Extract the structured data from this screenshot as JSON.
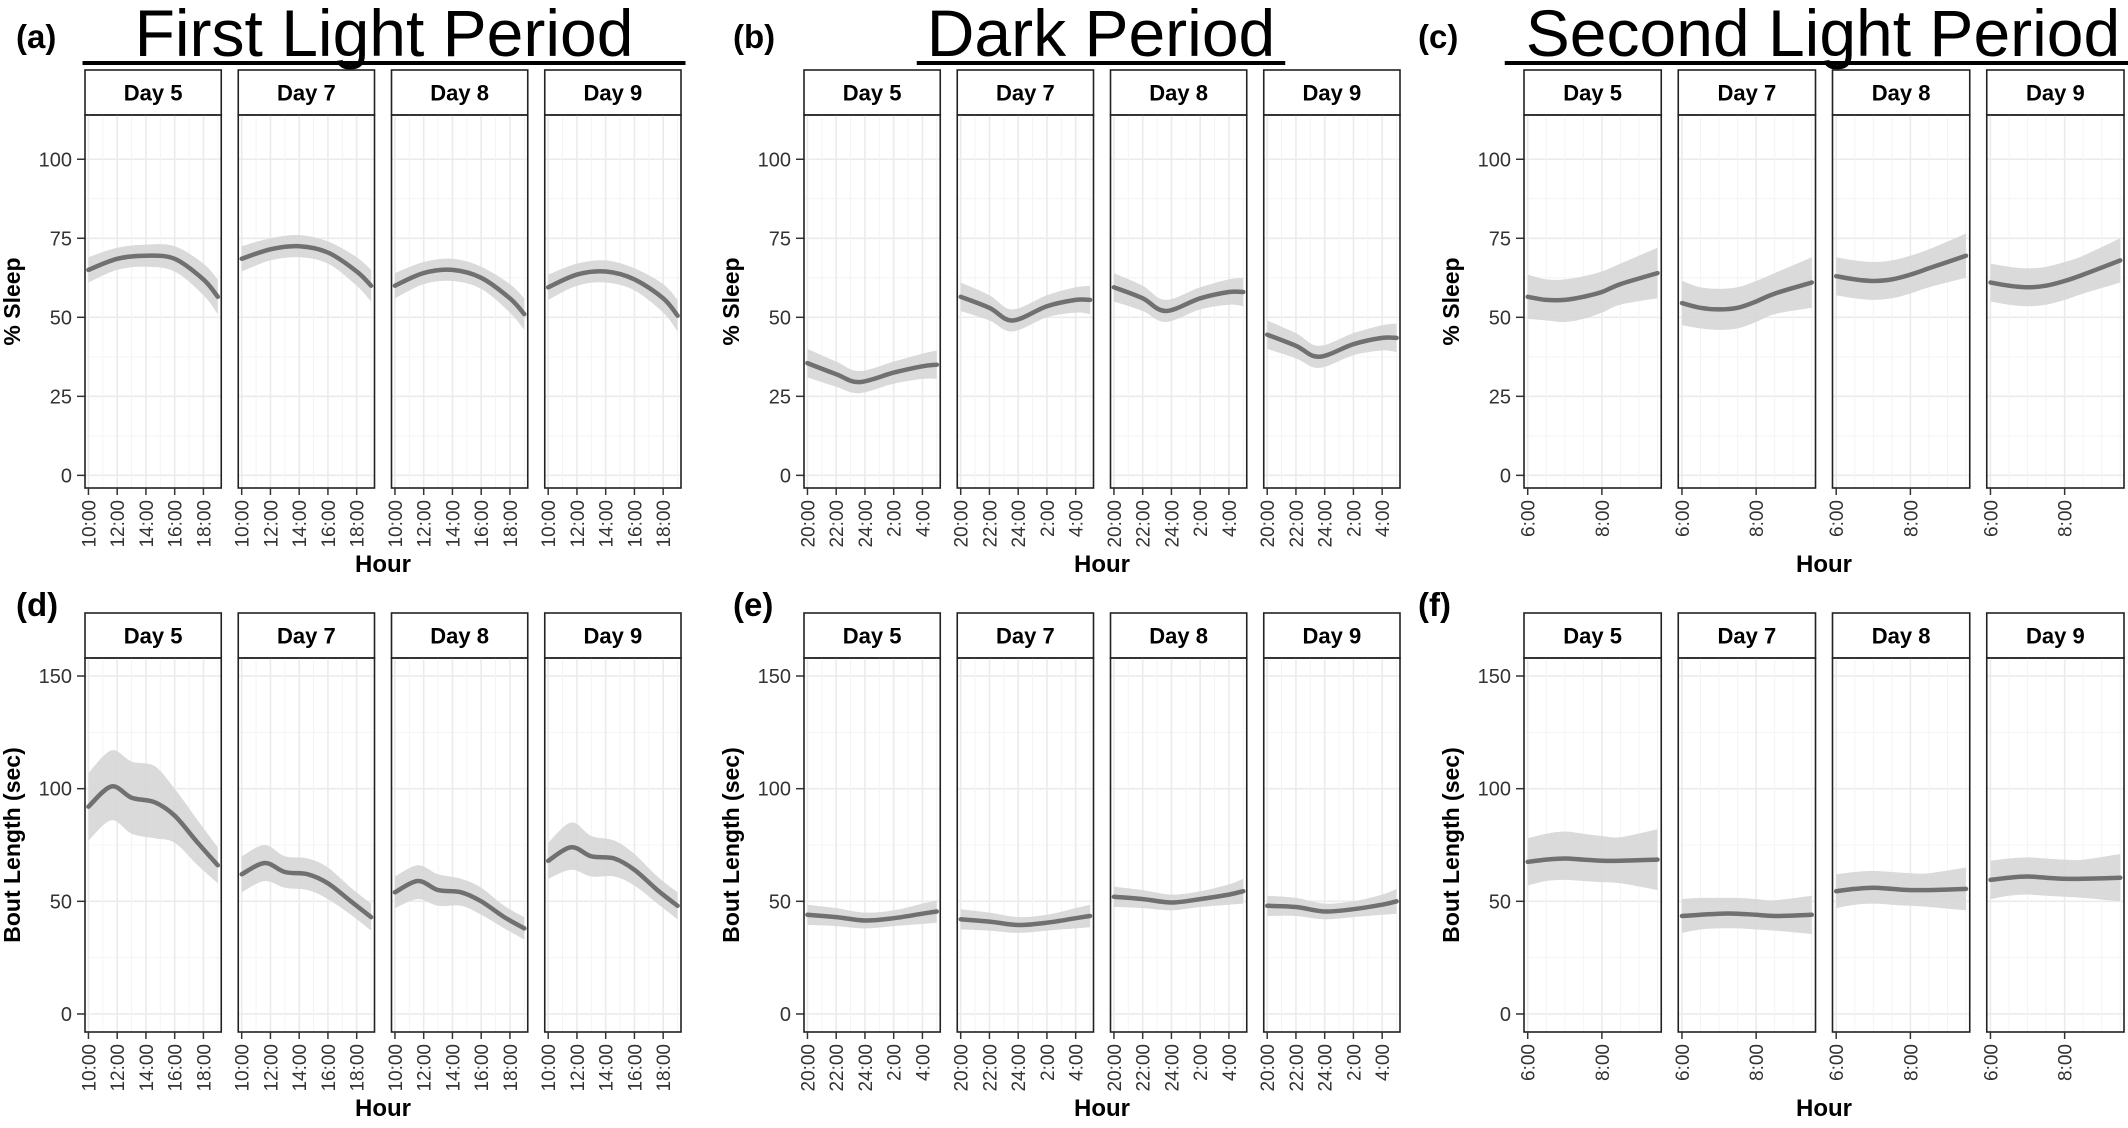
{
  "colors": {
    "line": "#707070",
    "ribbon": "#d6d6d6",
    "grid": "#ebebeb",
    "frame": "#222222",
    "strip_fill": "#ffffff",
    "text": "#000000"
  },
  "days": [
    "Day 5",
    "Day 7",
    "Day 8",
    "Day 9"
  ],
  "chart_data": [
    {
      "panel_label": "(a)",
      "title": "First Light Period",
      "type": "line",
      "xlabel": "Hour",
      "ylabel": "% Sleep",
      "x_ticks": [
        "10:00",
        "12:00",
        "14:00",
        "16:00",
        "18:00"
      ],
      "y_ticks": [
        0,
        25,
        50,
        75,
        100
      ],
      "ylim": [
        -4,
        114
      ],
      "series": [
        {
          "panel": "Day 5",
          "x": [
            0,
            1,
            2,
            3,
            4,
            4.5
          ],
          "values": [
            65,
            68.5,
            69.5,
            68.5,
            62,
            56.5
          ],
          "lower": [
            61,
            65,
            66,
            64.5,
            57,
            51
          ],
          "upper": [
            69,
            72,
            73,
            72.5,
            67,
            62
          ]
        },
        {
          "panel": "Day 7",
          "x": [
            0,
            1,
            2,
            3,
            4,
            4.5
          ],
          "values": [
            68.5,
            71.5,
            72.5,
            70.5,
            64.5,
            60
          ],
          "lower": [
            64.5,
            68,
            69,
            67,
            60,
            55
          ],
          "upper": [
            72.5,
            75,
            76,
            74,
            69,
            65
          ]
        },
        {
          "panel": "Day 8",
          "x": [
            0,
            1,
            2,
            3,
            4,
            4.5
          ],
          "values": [
            60,
            64,
            65,
            62.5,
            56,
            51
          ],
          "lower": [
            56,
            60.5,
            61.5,
            59,
            51.5,
            46
          ],
          "upper": [
            64,
            67.5,
            68.5,
            66,
            60.5,
            56
          ]
        },
        {
          "panel": "Day 9",
          "x": [
            0,
            1,
            2,
            3,
            4,
            4.5
          ],
          "values": [
            59.5,
            63.5,
            64.5,
            62,
            56,
            50.5
          ],
          "lower": [
            55.5,
            60,
            61,
            58.5,
            51.5,
            45.5
          ],
          "upper": [
            63.5,
            67,
            68,
            65.5,
            60.5,
            55.5
          ]
        }
      ]
    },
    {
      "panel_label": "(b)",
      "title": "Dark Period",
      "type": "line",
      "xlabel": "Hour",
      "ylabel": "% Sleep",
      "x_ticks": [
        "20:00",
        "22:00",
        "24:00",
        "2:00",
        "4:00"
      ],
      "y_ticks": [
        0,
        25,
        50,
        75,
        100
      ],
      "ylim": [
        -4,
        114
      ],
      "series": [
        {
          "panel": "Day 5",
          "x": [
            0,
            1,
            1.8,
            3,
            4,
            4.5
          ],
          "values": [
            35.5,
            32,
            29.5,
            32.5,
            34.5,
            35
          ],
          "lower": [
            31,
            28,
            26,
            29,
            30.5,
            30.5
          ],
          "upper": [
            40,
            36,
            33,
            36,
            38.5,
            39.5
          ]
        },
        {
          "panel": "Day 7",
          "x": [
            0,
            1,
            1.8,
            3,
            4,
            4.5
          ],
          "values": [
            56.5,
            53,
            49,
            53.5,
            55.5,
            55.5
          ],
          "lower": [
            52,
            49,
            45.5,
            50,
            51.5,
            51
          ],
          "upper": [
            61,
            57,
            52.5,
            57,
            59.5,
            60
          ]
        },
        {
          "panel": "Day 8",
          "x": [
            0,
            1,
            1.8,
            3,
            4,
            4.5
          ],
          "values": [
            59.5,
            56,
            52,
            56,
            58,
            58
          ],
          "lower": [
            55,
            52,
            48.5,
            52.5,
            54,
            53.5
          ],
          "upper": [
            64,
            60,
            55.5,
            59.5,
            62,
            62.5
          ]
        },
        {
          "panel": "Day 9",
          "x": [
            0,
            1,
            1.8,
            3,
            4,
            4.5
          ],
          "values": [
            44.5,
            41,
            37.5,
            41.5,
            43.5,
            43.5
          ],
          "lower": [
            40,
            37,
            34,
            38,
            39.5,
            39
          ],
          "upper": [
            49,
            45,
            41,
            45,
            47.5,
            48
          ]
        }
      ]
    },
    {
      "panel_label": "(c)",
      "title": "Second Light Period",
      "type": "line",
      "xlabel": "Hour",
      "ylabel": "% Sleep",
      "x_ticks": [
        "6:00",
        "8:00"
      ],
      "y_ticks": [
        0,
        25,
        50,
        75,
        100
      ],
      "ylim": [
        -4,
        114
      ],
      "series": [
        {
          "panel": "Day 5",
          "x": [
            0,
            0.5,
            1,
            1.5,
            2,
            2.5,
            3.5
          ],
          "values": [
            56.5,
            55.5,
            55.5,
            56.5,
            58,
            60.5,
            64
          ],
          "lower": [
            49.5,
            49,
            48.5,
            49.5,
            51.5,
            54,
            56
          ],
          "upper": [
            63.5,
            62,
            62,
            63,
            64.5,
            67,
            72
          ]
        },
        {
          "panel": "Day 7",
          "x": [
            0,
            0.5,
            1,
            1.5,
            2,
            2.5,
            3.5
          ],
          "values": [
            54.5,
            53,
            52.5,
            53,
            55,
            57.5,
            61
          ],
          "lower": [
            47.5,
            46.5,
            46,
            46.5,
            48.5,
            51,
            53
          ],
          "upper": [
            61.5,
            59.5,
            59,
            59.5,
            61.5,
            64,
            69
          ]
        },
        {
          "panel": "Day 8",
          "x": [
            0,
            0.5,
            1,
            1.5,
            2,
            2.5,
            3.5
          ],
          "values": [
            63,
            62,
            61.5,
            62,
            63.5,
            65.5,
            69.5
          ],
          "lower": [
            57,
            56,
            55.5,
            56,
            57.5,
            59.5,
            62.5
          ],
          "upper": [
            69,
            68,
            67.5,
            68,
            69.5,
            71.5,
            76.5
          ]
        },
        {
          "panel": "Day 9",
          "x": [
            0,
            0.5,
            1,
            1.5,
            2,
            2.5,
            3.5
          ],
          "values": [
            61,
            60,
            59.5,
            60,
            61.5,
            63.5,
            68
          ],
          "lower": [
            55,
            54,
            53.5,
            54,
            55.5,
            57.5,
            61
          ],
          "upper": [
            67,
            66,
            65.5,
            66,
            67.5,
            69.5,
            75
          ]
        }
      ]
    },
    {
      "panel_label": "(d)",
      "type": "line",
      "xlabel": "Hour",
      "ylabel": "Bout Length (sec)",
      "x_ticks": [
        "10:00",
        "12:00",
        "14:00",
        "16:00",
        "18:00"
      ],
      "y_ticks": [
        0,
        50,
        100,
        150
      ],
      "ylim": [
        -8,
        158
      ],
      "series": [
        {
          "panel": "Day 5",
          "x": [
            0,
            0.8,
            1.5,
            2.3,
            3,
            3.8,
            4.5
          ],
          "values": [
            92,
            101,
            96,
            94,
            88,
            76,
            66
          ],
          "lower": [
            77,
            86,
            80,
            78,
            76,
            66,
            58
          ],
          "upper": [
            107,
            117,
            112,
            110,
            100,
            86,
            74
          ]
        },
        {
          "panel": "Day 7",
          "x": [
            0,
            0.8,
            1.5,
            2.3,
            3,
            3.8,
            4.5
          ],
          "values": [
            62,
            67,
            63,
            62,
            58,
            50,
            43
          ],
          "lower": [
            54,
            59,
            56,
            55,
            51,
            44,
            37
          ],
          "upper": [
            70,
            75,
            70,
            69,
            65,
            56,
            49
          ]
        },
        {
          "panel": "Day 8",
          "x": [
            0,
            0.8,
            1.5,
            2.3,
            3,
            3.8,
            4.5
          ],
          "values": [
            54,
            59,
            55,
            54,
            50,
            43,
            38
          ],
          "lower": [
            47,
            51,
            48,
            48,
            44,
            38,
            33
          ],
          "upper": [
            61,
            66,
            62,
            60,
            56,
            48,
            43
          ]
        },
        {
          "panel": "Day 9",
          "x": [
            0,
            0.8,
            1.5,
            2.3,
            3,
            3.8,
            4.5
          ],
          "values": [
            68,
            74,
            70,
            69,
            64,
            55,
            48
          ],
          "lower": [
            60,
            64,
            61,
            61,
            57,
            49,
            42
          ],
          "upper": [
            76,
            85,
            79,
            77,
            71,
            61,
            54
          ]
        }
      ]
    },
    {
      "panel_label": "(e)",
      "type": "line",
      "xlabel": "Hour",
      "ylabel": "Bout Length (sec)",
      "x_ticks": [
        "20:00",
        "22:00",
        "24:00",
        "2:00",
        "4:00"
      ],
      "y_ticks": [
        0,
        50,
        100,
        150
      ],
      "ylim": [
        -8,
        158
      ],
      "series": [
        {
          "panel": "Day 5",
          "x": [
            0,
            1,
            2,
            3,
            4,
            4.5
          ],
          "values": [
            44,
            43,
            41.5,
            42.5,
            44.5,
            45.5
          ],
          "lower": [
            39.5,
            39,
            38,
            39,
            40,
            40.5
          ],
          "upper": [
            48.5,
            47,
            45,
            46,
            49,
            50.5
          ]
        },
        {
          "panel": "Day 7",
          "x": [
            0,
            1,
            2,
            3,
            4,
            4.5
          ],
          "values": [
            42,
            41,
            39.5,
            40.5,
            42.5,
            43.5
          ],
          "lower": [
            37.5,
            37,
            36,
            37,
            38,
            38.5
          ],
          "upper": [
            46.5,
            45,
            43,
            44,
            47,
            48.5
          ]
        },
        {
          "panel": "Day 8",
          "x": [
            0,
            1,
            2,
            3,
            4,
            4.5
          ],
          "values": [
            52,
            51,
            49.5,
            51,
            53,
            54.5
          ],
          "lower": [
            47.5,
            47,
            46,
            47.5,
            48.5,
            49
          ],
          "upper": [
            56.5,
            55,
            53,
            54.5,
            57.5,
            60
          ]
        },
        {
          "panel": "Day 9",
          "x": [
            0,
            1,
            2,
            3,
            4,
            4.5
          ],
          "values": [
            48,
            47.5,
            45.5,
            46.5,
            48.5,
            50
          ],
          "lower": [
            43.5,
            43.5,
            42,
            43,
            44,
            44.5
          ],
          "upper": [
            52.5,
            51.5,
            49,
            50,
            53,
            55.5
          ]
        }
      ]
    },
    {
      "panel_label": "(f)",
      "type": "line",
      "xlabel": "Hour",
      "ylabel": "Bout Length (sec)",
      "x_ticks": [
        "6:00",
        "8:00"
      ],
      "y_ticks": [
        0,
        50,
        100,
        150
      ],
      "ylim": [
        -8,
        158
      ],
      "series": [
        {
          "panel": "Day 5",
          "x": [
            0,
            0.5,
            1,
            1.5,
            2,
            2.5,
            3.5
          ],
          "values": [
            67.5,
            68.5,
            69,
            68.5,
            68,
            68,
            68.5
          ],
          "lower": [
            57,
            59,
            59.5,
            59,
            58.5,
            58,
            55
          ],
          "upper": [
            78,
            80,
            81,
            80,
            79,
            78.5,
            82
          ]
        },
        {
          "panel": "Day 7",
          "x": [
            0,
            0.5,
            1,
            1.5,
            2,
            2.5,
            3.5
          ],
          "values": [
            43.5,
            44,
            44.5,
            44.5,
            44,
            43.5,
            44
          ],
          "lower": [
            36,
            37.5,
            38,
            38,
            37.5,
            37,
            35.5
          ],
          "upper": [
            51,
            51.5,
            51.5,
            51.5,
            51,
            50.5,
            52.5
          ]
        },
        {
          "panel": "Day 8",
          "x": [
            0,
            0.5,
            1,
            1.5,
            2,
            2.5,
            3.5
          ],
          "values": [
            54.5,
            55.5,
            56,
            55.5,
            55,
            55,
            55.5
          ],
          "lower": [
            47,
            48.5,
            49,
            48.5,
            48,
            47.5,
            46
          ],
          "upper": [
            62,
            63,
            63.5,
            63,
            62.5,
            62.5,
            65
          ]
        },
        {
          "panel": "Day 9",
          "x": [
            0,
            0.5,
            1,
            1.5,
            2,
            2.5,
            3.5
          ],
          "values": [
            59.5,
            60.5,
            61,
            60.5,
            60,
            60,
            60.5
          ],
          "lower": [
            51,
            52.5,
            53,
            52.5,
            52,
            51.5,
            50
          ],
          "upper": [
            68,
            69,
            69.5,
            69,
            68.5,
            68.5,
            71
          ]
        }
      ]
    }
  ]
}
